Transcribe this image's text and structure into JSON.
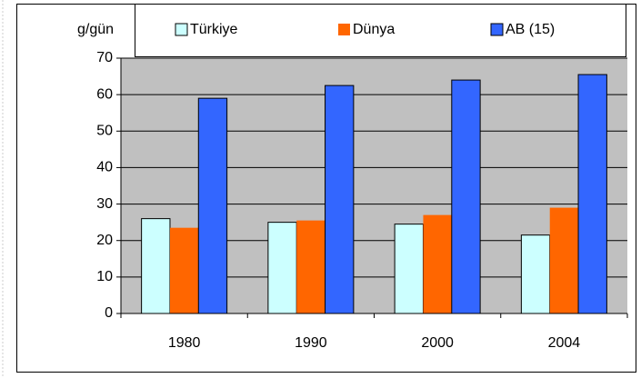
{
  "chart_data": {
    "type": "bar",
    "y_label": "g/gün",
    "categories": [
      "1980",
      "1990",
      "2000",
      "2004"
    ],
    "series": [
      {
        "name": "Türkiye",
        "color": "#ccffff",
        "values": [
          26,
          25,
          24.5,
          21.5
        ]
      },
      {
        "name": "Dünya",
        "color": "#ff6600",
        "values": [
          23.5,
          25.5,
          27,
          29
        ]
      },
      {
        "name": "AB (15)",
        "color": "#3366ff",
        "values": [
          59,
          62.5,
          64,
          65.5
        ]
      }
    ],
    "ylim": [
      0,
      70
    ],
    "yticks": [
      0,
      10,
      20,
      30,
      40,
      50,
      60,
      70
    ],
    "grid": true
  }
}
